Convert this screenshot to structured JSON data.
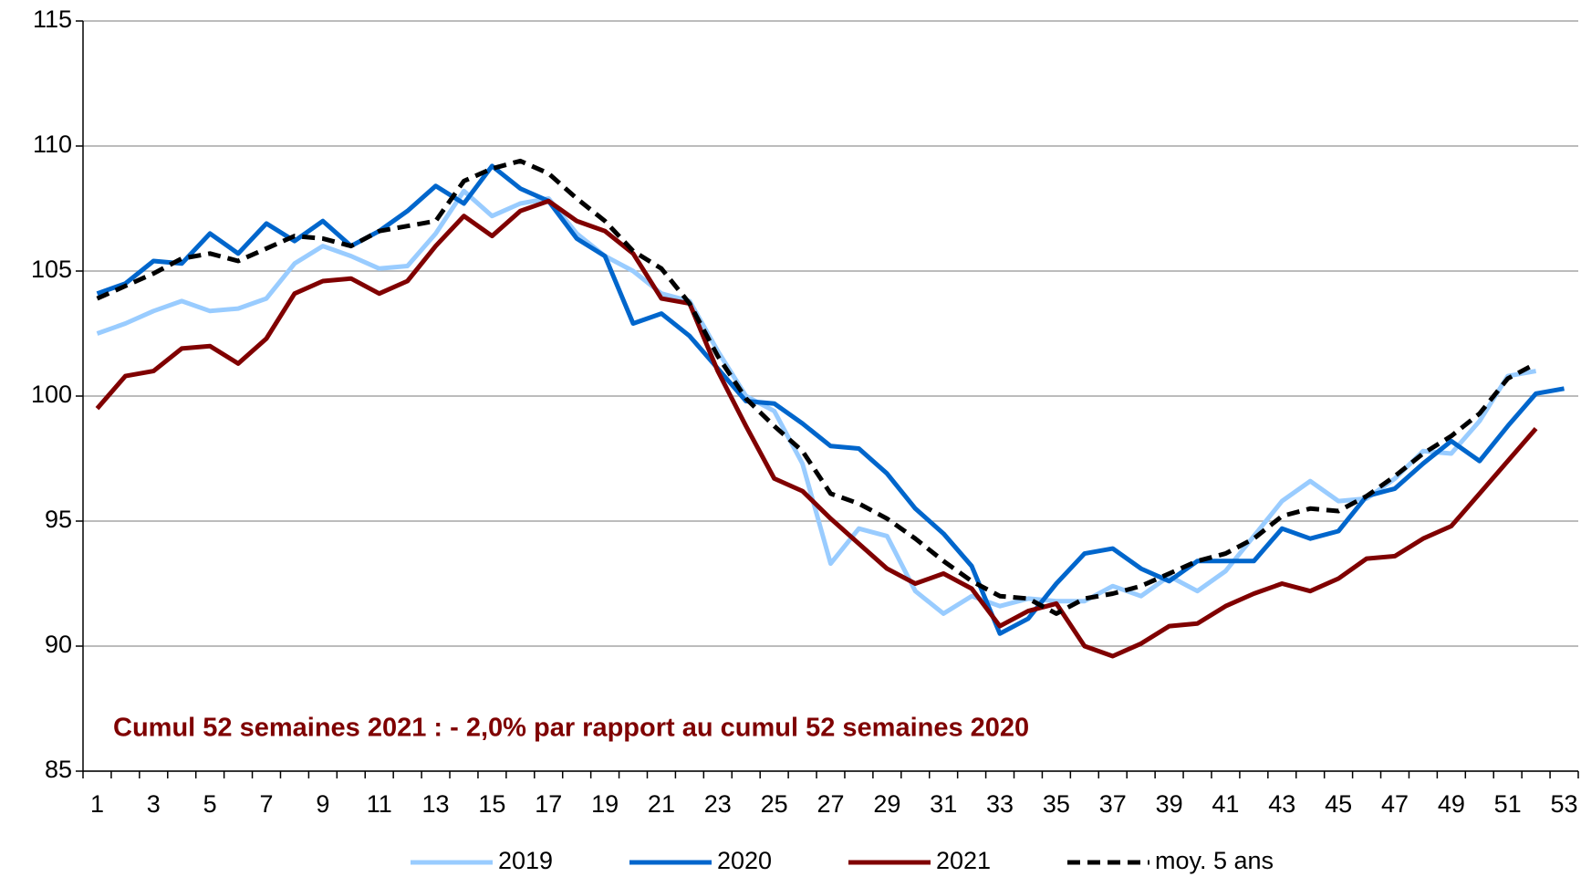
{
  "chart_data": {
    "type": "line",
    "annotation": "Cumul 52 semaines 2021 : - 2,0% par rapport au cumul 52 semaines 2020",
    "categories": [
      "1",
      null,
      "3",
      null,
      "5",
      null,
      "7",
      null,
      "9",
      null,
      "11",
      null,
      "13",
      null,
      "15",
      null,
      "17",
      null,
      "19",
      null,
      "21",
      null,
      "23",
      null,
      "25",
      null,
      "27",
      null,
      "29",
      null,
      "31",
      null,
      "33",
      null,
      "35",
      null,
      "37",
      null,
      "39",
      null,
      "41",
      null,
      "43",
      null,
      "45",
      null,
      "47",
      null,
      "49",
      null,
      "51",
      null,
      "53"
    ],
    "series": [
      {
        "name": "2019",
        "color": "#99ccff",
        "dash": false,
        "values": [
          102.5,
          102.9,
          103.4,
          103.8,
          103.4,
          103.5,
          103.9,
          105.3,
          106.0,
          105.6,
          105.1,
          105.2,
          106.5,
          108.2,
          107.2,
          107.7,
          107.9,
          106.5,
          105.6,
          105.0,
          104.1,
          103.8,
          101.8,
          100.0,
          99.4,
          97.3,
          93.3,
          94.7,
          94.4,
          92.2,
          91.3,
          92.0,
          91.6,
          91.9,
          91.8,
          91.8,
          92.4,
          92.0,
          92.8,
          92.2,
          93.0,
          94.4,
          95.8,
          96.6,
          95.8,
          95.9,
          96.7,
          97.8,
          97.7,
          99.0,
          100.8,
          101.0,
          null
        ]
      },
      {
        "name": "2020",
        "color": "#0066cc",
        "dash": false,
        "values": [
          104.1,
          104.5,
          105.4,
          105.3,
          106.5,
          105.7,
          106.9,
          106.2,
          107.0,
          106.0,
          106.6,
          107.4,
          108.4,
          107.7,
          109.2,
          108.3,
          107.8,
          106.3,
          105.6,
          102.9,
          103.3,
          102.4,
          101.1,
          99.8,
          99.7,
          98.9,
          98.0,
          97.9,
          96.9,
          95.5,
          94.5,
          93.2,
          90.5,
          91.1,
          92.5,
          93.7,
          93.9,
          93.1,
          92.6,
          93.4,
          93.4,
          93.4,
          94.7,
          94.3,
          94.6,
          96.0,
          96.3,
          97.3,
          98.2,
          97.4,
          98.8,
          100.1,
          100.3
        ]
      },
      {
        "name": "2021",
        "color": "#800000",
        "dash": false,
        "values": [
          99.5,
          100.8,
          101.0,
          101.9,
          102.0,
          101.3,
          102.3,
          104.1,
          104.6,
          104.7,
          104.1,
          104.6,
          106.0,
          107.2,
          106.4,
          107.4,
          107.8,
          107.0,
          106.6,
          105.7,
          103.9,
          103.7,
          101.0,
          98.8,
          96.7,
          96.2,
          95.1,
          94.1,
          93.1,
          92.5,
          92.9,
          92.3,
          90.8,
          91.4,
          91.7,
          90.0,
          89.6,
          90.1,
          90.8,
          90.9,
          91.6,
          92.1,
          92.5,
          92.2,
          92.7,
          93.5,
          93.6,
          94.3,
          94.8,
          96.1,
          97.4,
          98.7,
          null
        ]
      },
      {
        "name": "moy. 5 ans",
        "color": "#000000",
        "dash": true,
        "values": [
          103.9,
          104.4,
          104.9,
          105.5,
          105.7,
          105.4,
          105.9,
          106.4,
          106.3,
          106.0,
          106.6,
          106.8,
          107.0,
          108.6,
          109.1,
          109.4,
          108.9,
          107.9,
          107.0,
          105.8,
          105.1,
          103.7,
          101.6,
          99.9,
          98.8,
          97.8,
          96.1,
          95.7,
          95.1,
          94.3,
          93.4,
          92.6,
          92.0,
          91.9,
          91.3,
          91.9,
          92.1,
          92.4,
          92.9,
          93.4,
          93.7,
          94.3,
          95.2,
          95.5,
          95.4,
          96.0,
          96.8,
          97.7,
          98.4,
          99.3,
          100.7,
          101.3,
          null
        ]
      }
    ],
    "ylim": [
      85,
      115
    ],
    "yticks": [
      85,
      90,
      95,
      100,
      105,
      110,
      115
    ],
    "grid": true,
    "legend": "bottom"
  }
}
